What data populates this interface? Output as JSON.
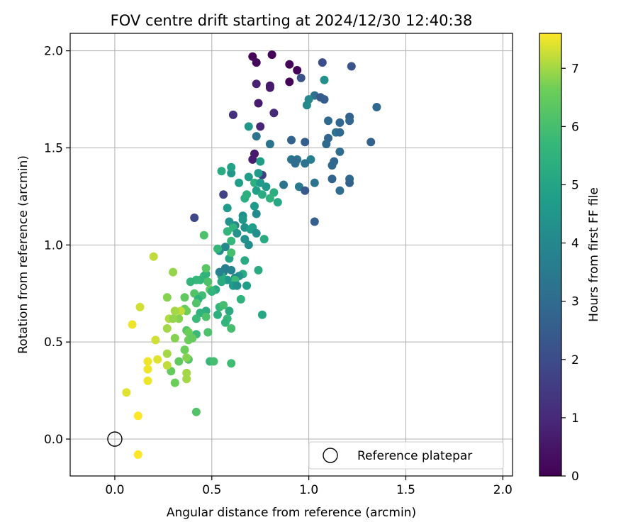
{
  "chart_data": {
    "type": "scatter",
    "title": "FOV centre drift starting at 2024/12/30 12:40:38",
    "xlabel": "Angular distance from reference (arcmin)",
    "ylabel": "Rotation from reference (arcmin)",
    "xlim": [
      -0.23,
      2.05
    ],
    "ylim": [
      -0.19,
      2.09
    ],
    "xticks": [
      "0.0",
      "0.5",
      "1.0",
      "1.5",
      "2.0"
    ],
    "xtick_values": [
      0,
      0.5,
      1.0,
      1.5,
      2.0
    ],
    "yticks": [
      "0.0",
      "0.5",
      "1.0",
      "1.5",
      "2.0"
    ],
    "ytick_values": [
      0,
      0.5,
      1.0,
      1.5,
      2.0
    ],
    "grid": true,
    "colormap": "viridis",
    "colorbar": {
      "label": "Hours from first FF file",
      "min": 0,
      "max": 7.6,
      "ticks": [
        "0",
        "1",
        "2",
        "3",
        "4",
        "5",
        "6",
        "7"
      ],
      "tick_values": [
        0,
        1,
        2,
        3,
        4,
        5,
        6,
        7
      ]
    },
    "reference_point": {
      "x": 0,
      "y": 0,
      "marker": "open-circle",
      "color": "#000000"
    },
    "legend": {
      "position": "lower-right",
      "entries": [
        "Reference platepar"
      ]
    },
    "series": [
      {
        "points": [
          [
            0.71,
            1.97,
            0.1
          ],
          [
            0.73,
            1.94,
            0.2
          ],
          [
            0.81,
            1.98,
            0.1
          ],
          [
            0.9,
            1.93,
            0.1
          ],
          [
            0.94,
            1.9,
            0.1
          ],
          [
            0.9,
            1.84,
            0.1
          ],
          [
            0.73,
            1.83,
            0.8
          ],
          [
            0.8,
            1.82,
            0.5
          ],
          [
            0.8,
            1.81,
            0.6
          ],
          [
            0.74,
            1.73,
            0.6
          ],
          [
            0.82,
            1.68,
            1.0
          ],
          [
            0.61,
            1.67,
            1.2
          ],
          [
            0.75,
            1.61,
            0.9
          ],
          [
            0.72,
            1.47,
            0.6
          ],
          [
            0.71,
            1.44,
            0.7
          ],
          [
            0.76,
            1.36,
            1.6
          ],
          [
            0.56,
            1.26,
            1.7
          ],
          [
            0.41,
            1.14,
            1.8
          ],
          [
            1.07,
            1.94,
            2.0
          ],
          [
            0.96,
            1.86,
            2.2
          ],
          [
            1.22,
            1.92,
            2.2
          ],
          [
            1.08,
            1.85,
            4.3
          ],
          [
            1.03,
            1.77,
            3.1
          ],
          [
            1.06,
            1.76,
            2.4
          ],
          [
            1.08,
            1.75,
            2.5
          ],
          [
            1.0,
            1.75,
            4.0
          ],
          [
            0.99,
            1.72,
            4.0
          ],
          [
            1.35,
            1.71,
            2.9
          ],
          [
            1.21,
            1.66,
            2.6
          ],
          [
            1.16,
            1.63,
            2.8
          ],
          [
            1.21,
            1.64,
            2.8
          ],
          [
            1.1,
            1.64,
            2.9
          ],
          [
            1.14,
            1.58,
            3.2
          ],
          [
            1.16,
            1.58,
            2.9
          ],
          [
            1.1,
            1.55,
            2.8
          ],
          [
            1.09,
            1.52,
            2.9
          ],
          [
            0.98,
            1.53,
            2.5
          ],
          [
            0.91,
            1.54,
            2.7
          ],
          [
            1.32,
            1.53,
            2.7
          ],
          [
            0.8,
            1.52,
            3.3
          ],
          [
            1.16,
            1.48,
            3.0
          ],
          [
            1.13,
            1.43,
            2.8
          ],
          [
            1.12,
            1.41,
            2.9
          ],
          [
            0.91,
            1.44,
            3.3
          ],
          [
            1.01,
            1.44,
            3.7
          ],
          [
            0.94,
            1.44,
            3.4
          ],
          [
            0.93,
            1.42,
            3.1
          ],
          [
            0.93,
            1.43,
            3.0
          ],
          [
            0.98,
            1.42,
            3.2
          ],
          [
            1.12,
            1.34,
            2.7
          ],
          [
            1.21,
            1.34,
            2.9
          ],
          [
            1.21,
            1.32,
            2.7
          ],
          [
            1.03,
            1.32,
            3.2
          ],
          [
            0.95,
            1.3,
            3.5
          ],
          [
            0.87,
            1.31,
            3.3
          ],
          [
            0.98,
            1.28,
            2.4
          ],
          [
            1.16,
            1.28,
            3.0
          ],
          [
            1.03,
            1.12,
            2.6
          ],
          [
            0.73,
            1.56,
            3.3
          ],
          [
            0.69,
            1.61,
            4.5
          ],
          [
            0.6,
            1.37,
            4.5
          ],
          [
            0.6,
            1.4,
            4.9
          ],
          [
            0.55,
            1.38,
            5.2
          ],
          [
            0.75,
            1.43,
            4.7
          ],
          [
            0.74,
            1.37,
            4.6
          ],
          [
            0.69,
            1.35,
            4.7
          ],
          [
            0.72,
            1.32,
            5.4
          ],
          [
            0.78,
            1.3,
            4.5
          ],
          [
            0.75,
            1.32,
            4.6
          ],
          [
            0.73,
            1.28,
            4.8
          ],
          [
            0.82,
            1.27,
            5.3
          ],
          [
            0.84,
            1.22,
            5.1
          ],
          [
            0.8,
            1.24,
            5.5
          ],
          [
            0.76,
            1.26,
            5.2
          ],
          [
            0.72,
            1.2,
            4.6
          ],
          [
            0.67,
            1.24,
            5.3
          ],
          [
            0.68,
            1.26,
            5.4
          ],
          [
            0.64,
            1.32,
            4.8
          ],
          [
            0.58,
            1.19,
            4.6
          ],
          [
            0.66,
            1.15,
            4.3
          ],
          [
            0.66,
            1.13,
            4.5
          ],
          [
            0.59,
            1.12,
            4.4
          ],
          [
            0.62,
            1.1,
            4.0
          ],
          [
            0.67,
            1.09,
            4.3
          ],
          [
            0.71,
            1.09,
            4.7
          ],
          [
            0.7,
            1.08,
            4.8
          ],
          [
            0.61,
            1.09,
            5.5
          ],
          [
            0.58,
            1.07,
            5.6
          ],
          [
            0.63,
            1.06,
            4.4
          ],
          [
            0.73,
            1.06,
            4.2
          ],
          [
            0.77,
            1.03,
            5.2
          ],
          [
            0.67,
            1.03,
            4.3
          ],
          [
            0.69,
            1.0,
            4.2
          ],
          [
            0.73,
            1.16,
            4.1
          ],
          [
            0.57,
            0.99,
            4.0
          ],
          [
            0.54,
            0.97,
            4.2
          ],
          [
            0.59,
            0.93,
            5.0
          ],
          [
            0.6,
            1.02,
            5.7
          ],
          [
            0.6,
            0.96,
            6.0
          ],
          [
            0.67,
            0.92,
            5.2
          ],
          [
            0.74,
            0.87,
            5.2
          ],
          [
            0.66,
            0.85,
            5.2
          ],
          [
            0.6,
            0.87,
            3.8
          ],
          [
            0.56,
            0.86,
            3.7
          ],
          [
            0.57,
            0.88,
            3.7
          ],
          [
            0.64,
            0.84,
            4.4
          ],
          [
            0.62,
            0.83,
            4.0
          ],
          [
            0.62,
            0.82,
            5.8
          ],
          [
            0.58,
            0.82,
            4.6
          ],
          [
            0.55,
            0.84,
            5.3
          ],
          [
            0.54,
            0.86,
            3.8
          ],
          [
            0.55,
            0.81,
            5.2
          ],
          [
            0.61,
            0.79,
            4.6
          ],
          [
            0.63,
            0.79,
            4.3
          ],
          [
            0.68,
            0.79,
            4.8
          ],
          [
            0.65,
            0.72,
            5.5
          ],
          [
            0.52,
            0.77,
            5.2
          ],
          [
            0.46,
            0.84,
            5.8
          ],
          [
            0.44,
            0.82,
            5.6
          ],
          [
            0.47,
            0.85,
            5.5
          ],
          [
            0.47,
            0.88,
            6.3
          ],
          [
            0.48,
            0.81,
            6.1
          ],
          [
            0.42,
            0.82,
            5.7
          ],
          [
            0.39,
            0.81,
            5.6
          ],
          [
            0.46,
            1.05,
            6.1
          ],
          [
            0.53,
            0.98,
            5.7
          ],
          [
            0.45,
            0.74,
            5.9
          ],
          [
            0.41,
            0.75,
            6.2
          ],
          [
            0.43,
            0.72,
            5.5
          ],
          [
            0.49,
            0.77,
            6.4
          ],
          [
            0.5,
            0.76,
            5.6
          ],
          [
            0.42,
            0.7,
            6.2
          ],
          [
            0.47,
            0.66,
            5.3
          ],
          [
            0.44,
            0.65,
            5.5
          ],
          [
            0.42,
            0.62,
            5.8
          ],
          [
            0.47,
            0.63,
            6.1
          ],
          [
            0.53,
            0.64,
            5.4
          ],
          [
            0.54,
            0.68,
            5.6
          ],
          [
            0.59,
            0.66,
            5.2
          ],
          [
            0.56,
            0.69,
            6.0
          ],
          [
            0.58,
            0.62,
            5.7
          ],
          [
            0.57,
            0.6,
            5.6
          ],
          [
            0.6,
            0.57,
            6.0
          ],
          [
            0.76,
            0.64,
            5.1
          ],
          [
            0.48,
            0.55,
            6.1
          ],
          [
            0.42,
            0.54,
            5.8
          ],
          [
            0.37,
            0.56,
            6.2
          ],
          [
            0.36,
            0.73,
            6.4
          ],
          [
            0.36,
            0.67,
            6.5
          ],
          [
            0.37,
            0.66,
            6.6
          ],
          [
            0.34,
            0.66,
            7.2
          ],
          [
            0.33,
            0.62,
            6.8
          ],
          [
            0.31,
            0.66,
            7.0
          ],
          [
            0.28,
            0.62,
            7.1
          ],
          [
            0.3,
            0.62,
            6.9
          ],
          [
            0.27,
            0.57,
            7.0
          ],
          [
            0.31,
            0.52,
            6.8
          ],
          [
            0.38,
            0.55,
            6.6
          ],
          [
            0.38,
            0.51,
            6.6
          ],
          [
            0.4,
            0.52,
            6.5
          ],
          [
            0.3,
            0.86,
            6.9
          ],
          [
            0.27,
            0.73,
            6.8
          ],
          [
            0.36,
            0.46,
            6.6
          ],
          [
            0.38,
            0.41,
            6.2
          ],
          [
            0.37,
            0.42,
            6.8
          ],
          [
            0.33,
            0.4,
            6.4
          ],
          [
            0.29,
            0.35,
            6.5
          ],
          [
            0.27,
            0.44,
            7.0
          ],
          [
            0.27,
            0.38,
            7.2
          ],
          [
            0.31,
            0.29,
            6.6
          ],
          [
            0.37,
            0.31,
            7.0
          ],
          [
            0.37,
            0.34,
            7.0
          ],
          [
            0.49,
            0.4,
            5.7
          ],
          [
            0.51,
            0.4,
            6.0
          ],
          [
            0.6,
            0.39,
            5.9
          ],
          [
            0.42,
            0.14,
            6.2
          ],
          [
            0.2,
            0.94,
            7.2
          ],
          [
            0.13,
            0.68,
            7.3
          ],
          [
            0.09,
            0.59,
            7.5
          ],
          [
            0.21,
            0.51,
            7.3
          ],
          [
            0.22,
            0.41,
            7.4
          ],
          [
            0.17,
            0.4,
            7.5
          ],
          [
            0.17,
            0.36,
            7.5
          ],
          [
            0.17,
            0.3,
            7.5
          ],
          [
            0.06,
            0.24,
            7.4
          ],
          [
            0.12,
            0.12,
            7.6
          ],
          [
            0.12,
            -0.08,
            7.6
          ]
        ]
      }
    ]
  }
}
